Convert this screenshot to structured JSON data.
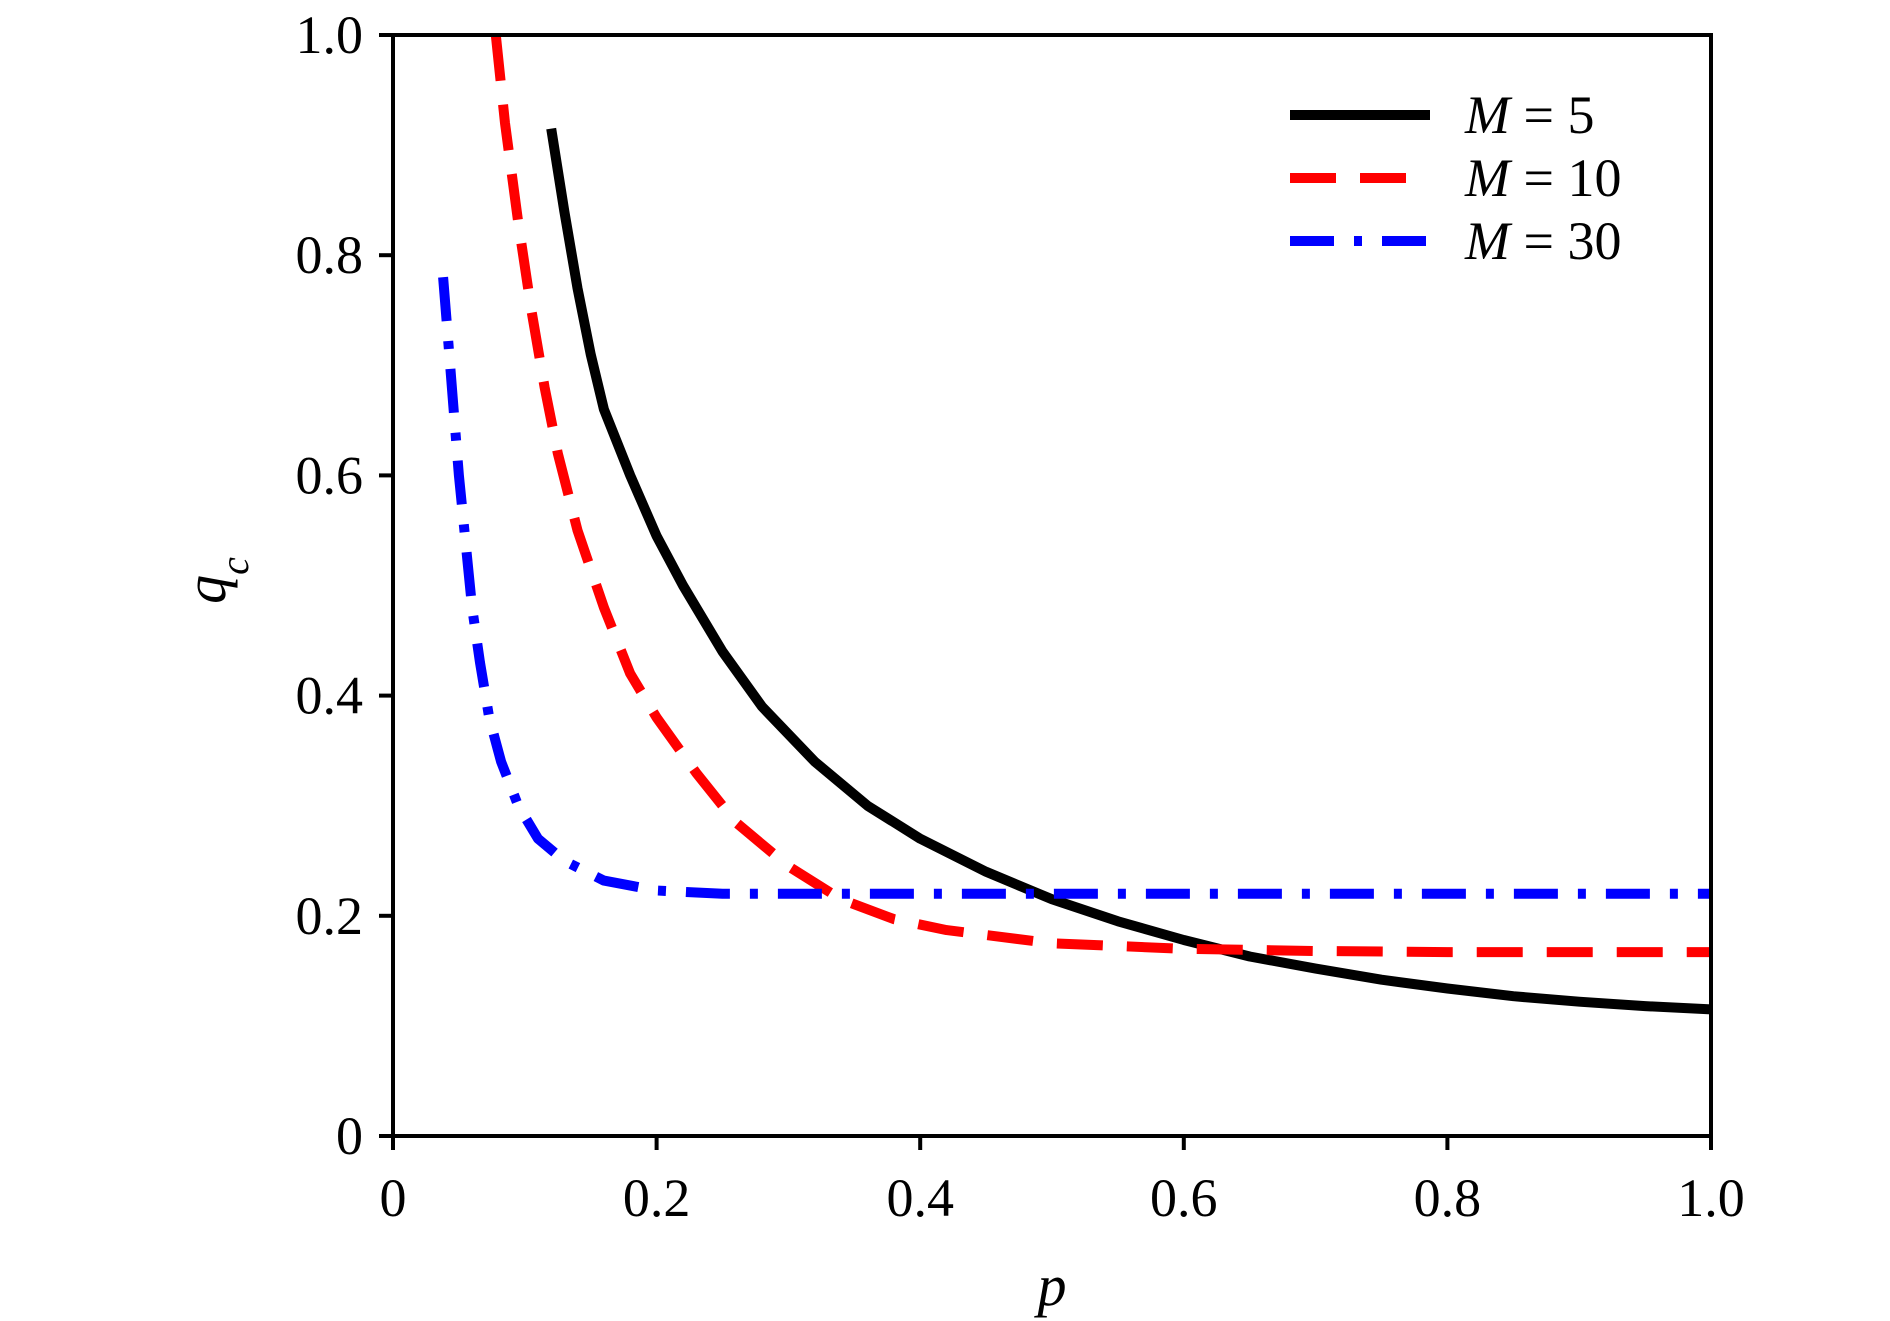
{
  "chart_data": {
    "type": "line",
    "title": "",
    "xlabel": "p",
    "ylabel": "q",
    "ylabel_subscript": "c",
    "xlim": [
      0,
      1.0
    ],
    "ylim": [
      0,
      1.0
    ],
    "xticks": [
      0,
      0.2,
      0.4,
      0.6,
      0.8,
      1.0
    ],
    "xtick_labels": [
      "0",
      "0.2",
      "0.4",
      "0.6",
      "0.8",
      "1.0"
    ],
    "yticks": [
      0,
      0.2,
      0.4,
      0.6,
      0.8,
      1.0
    ],
    "ytick_labels": [
      "0",
      "0.2",
      "0.4",
      "0.6",
      "0.8",
      "1.0"
    ],
    "grid": false,
    "legend_position": "top-right",
    "series": [
      {
        "name": "M = 5",
        "name_var": "M",
        "name_rest": " = 5",
        "color": "#000000",
        "style": "solid",
        "points": [
          [
            0.12,
            0.915
          ],
          [
            0.13,
            0.84
          ],
          [
            0.14,
            0.77
          ],
          [
            0.15,
            0.71
          ],
          [
            0.16,
            0.66
          ],
          [
            0.18,
            0.6
          ],
          [
            0.2,
            0.545
          ],
          [
            0.22,
            0.5
          ],
          [
            0.25,
            0.44
          ],
          [
            0.28,
            0.39
          ],
          [
            0.32,
            0.34
          ],
          [
            0.36,
            0.3
          ],
          [
            0.4,
            0.27
          ],
          [
            0.45,
            0.24
          ],
          [
            0.5,
            0.215
          ],
          [
            0.55,
            0.195
          ],
          [
            0.6,
            0.178
          ],
          [
            0.65,
            0.163
          ],
          [
            0.7,
            0.152
          ],
          [
            0.75,
            0.142
          ],
          [
            0.8,
            0.134
          ],
          [
            0.85,
            0.127
          ],
          [
            0.9,
            0.122
          ],
          [
            0.95,
            0.118
          ],
          [
            1.0,
            0.115
          ]
        ]
      },
      {
        "name": "M = 10",
        "name_var": "M",
        "name_rest": " = 10",
        "color": "#ff0000",
        "style": "dashed",
        "points": [
          [
            0.078,
            1.0
          ],
          [
            0.085,
            0.92
          ],
          [
            0.095,
            0.83
          ],
          [
            0.105,
            0.75
          ],
          [
            0.115,
            0.68
          ],
          [
            0.125,
            0.62
          ],
          [
            0.14,
            0.55
          ],
          [
            0.16,
            0.48
          ],
          [
            0.18,
            0.42
          ],
          [
            0.2,
            0.38
          ],
          [
            0.23,
            0.33
          ],
          [
            0.26,
            0.285
          ],
          [
            0.3,
            0.245
          ],
          [
            0.34,
            0.215
          ],
          [
            0.38,
            0.197
          ],
          [
            0.42,
            0.187
          ],
          [
            0.5,
            0.175
          ],
          [
            0.6,
            0.17
          ],
          [
            0.7,
            0.168
          ],
          [
            0.8,
            0.167
          ],
          [
            0.9,
            0.167
          ],
          [
            1.0,
            0.167
          ]
        ]
      },
      {
        "name": "M = 30",
        "name_var": "M",
        "name_rest": " = 30",
        "color": "#0000ff",
        "style": "dashdot",
        "points": [
          [
            0.038,
            0.78
          ],
          [
            0.042,
            0.72
          ],
          [
            0.046,
            0.66
          ],
          [
            0.05,
            0.6
          ],
          [
            0.055,
            0.54
          ],
          [
            0.06,
            0.48
          ],
          [
            0.066,
            0.43
          ],
          [
            0.073,
            0.38
          ],
          [
            0.082,
            0.34
          ],
          [
            0.095,
            0.3
          ],
          [
            0.11,
            0.27
          ],
          [
            0.13,
            0.25
          ],
          [
            0.16,
            0.232
          ],
          [
            0.2,
            0.223
          ],
          [
            0.25,
            0.22
          ],
          [
            0.3,
            0.22
          ],
          [
            0.4,
            0.22
          ],
          [
            0.6,
            0.22
          ],
          [
            0.8,
            0.22
          ],
          [
            1.0,
            0.22
          ]
        ]
      }
    ]
  }
}
